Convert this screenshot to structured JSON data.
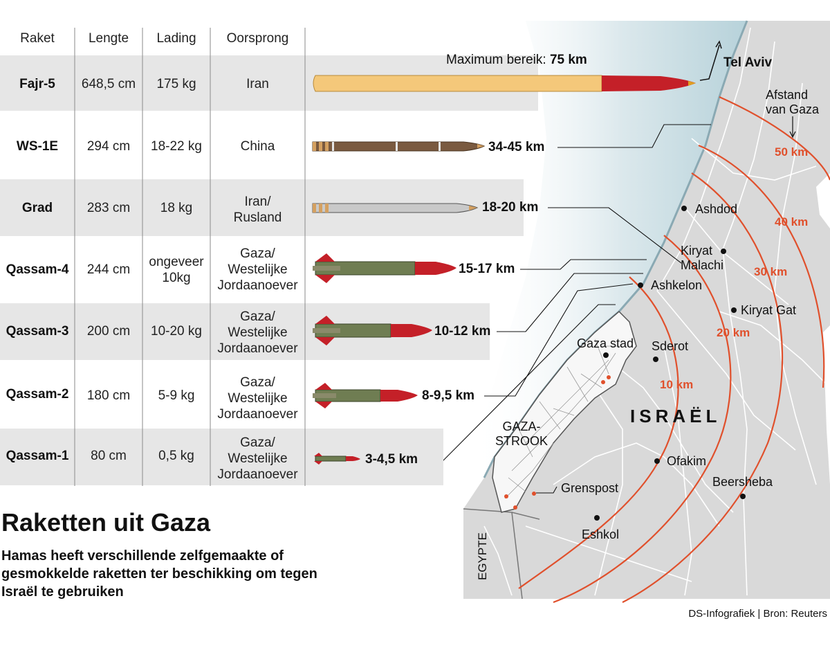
{
  "headers": {
    "rocket": "Raket",
    "length": "Lengte",
    "payload": "Lading",
    "origin": "Oorsprong"
  },
  "rows": [
    {
      "name": "Fajr-5",
      "length": "648,5 cm",
      "payload": "175 kg",
      "origin_lines": [
        "Iran"
      ],
      "range": "75 km"
    },
    {
      "name": "WS-1E",
      "length": "294 cm",
      "payload": "18-22 kg",
      "origin_lines": [
        "China"
      ],
      "range": "34-45 km"
    },
    {
      "name": "Grad",
      "length": "283 cm",
      "payload": "18 kg",
      "origin_lines": [
        "Iran/",
        "Rusland"
      ],
      "range": "18-20 km"
    },
    {
      "name": "Qassam-4",
      "length": "244 cm",
      "payload_lines": [
        "ongeveer",
        "10kg"
      ],
      "origin_lines": [
        "Gaza/",
        "Westelijke",
        "Jordaanoever"
      ],
      "range": "15-17 km"
    },
    {
      "name": "Qassam-3",
      "length": "200 cm",
      "payload": "10-20 kg",
      "origin_lines": [
        "Gaza/",
        "Westelijke",
        "Jordaanoever"
      ],
      "range": "10-12 km"
    },
    {
      "name": "Qassam-2",
      "length": "180 cm",
      "payload": "5-9 kg",
      "origin_lines": [
        "Gaza/",
        "Westelijke",
        "Jordaanoever"
      ],
      "range": "8-9,5 km"
    },
    {
      "name": "Qassam-1",
      "length": "80 cm",
      "payload": "0,5 kg",
      "origin_lines": [
        "Gaza/",
        "Westelijke",
        "Jordaanoever"
      ],
      "range": "3-4,5 km"
    }
  ],
  "max_range_label": "Maximum bereik:",
  "title": "Raketten uit Gaza",
  "subtitle": "Hamas heeft verschillende zelfgemaakte of gesmokkelde raketten ter beschikking om tegen Israël te gebruiken",
  "source": "DS-Infografiek | Bron: Reuters",
  "map": {
    "country": "ISRAËL",
    "strip_label_lines": [
      "GAZA-",
      "STROOK"
    ],
    "egypt": "EGYPTE",
    "distance_label_lines": [
      "Afstand",
      "van Gaza"
    ],
    "rings": [
      "10 km",
      "20 km",
      "30 km",
      "40 km",
      "50 km"
    ],
    "cities": {
      "tel_aviv": "Tel Aviv",
      "ashdod": "Ashdod",
      "kiryat_malachi_lines": [
        "Kiryat",
        "Malachi"
      ],
      "ashkelon": "Ashkelon",
      "kiryat_gat": "Kiryat Gat",
      "gaza_city": "Gaza stad",
      "sderot": "Sderot",
      "ofakim": "Ofakim",
      "beersheba": "Beersheba",
      "border_post": "Grenspost",
      "eshkol": "Eshkol"
    }
  },
  "colors": {
    "row_bg": "#e6e6e6",
    "sea": "#c7dde4",
    "land": "#d8d8d8",
    "ring": "#e0502c",
    "rocket_red": "#c42028",
    "qassam_green": "#6f7d52",
    "fajr_body": "#f4c87a",
    "ws_body": "#7a5a40",
    "grad_body": "#c9c9c9"
  }
}
